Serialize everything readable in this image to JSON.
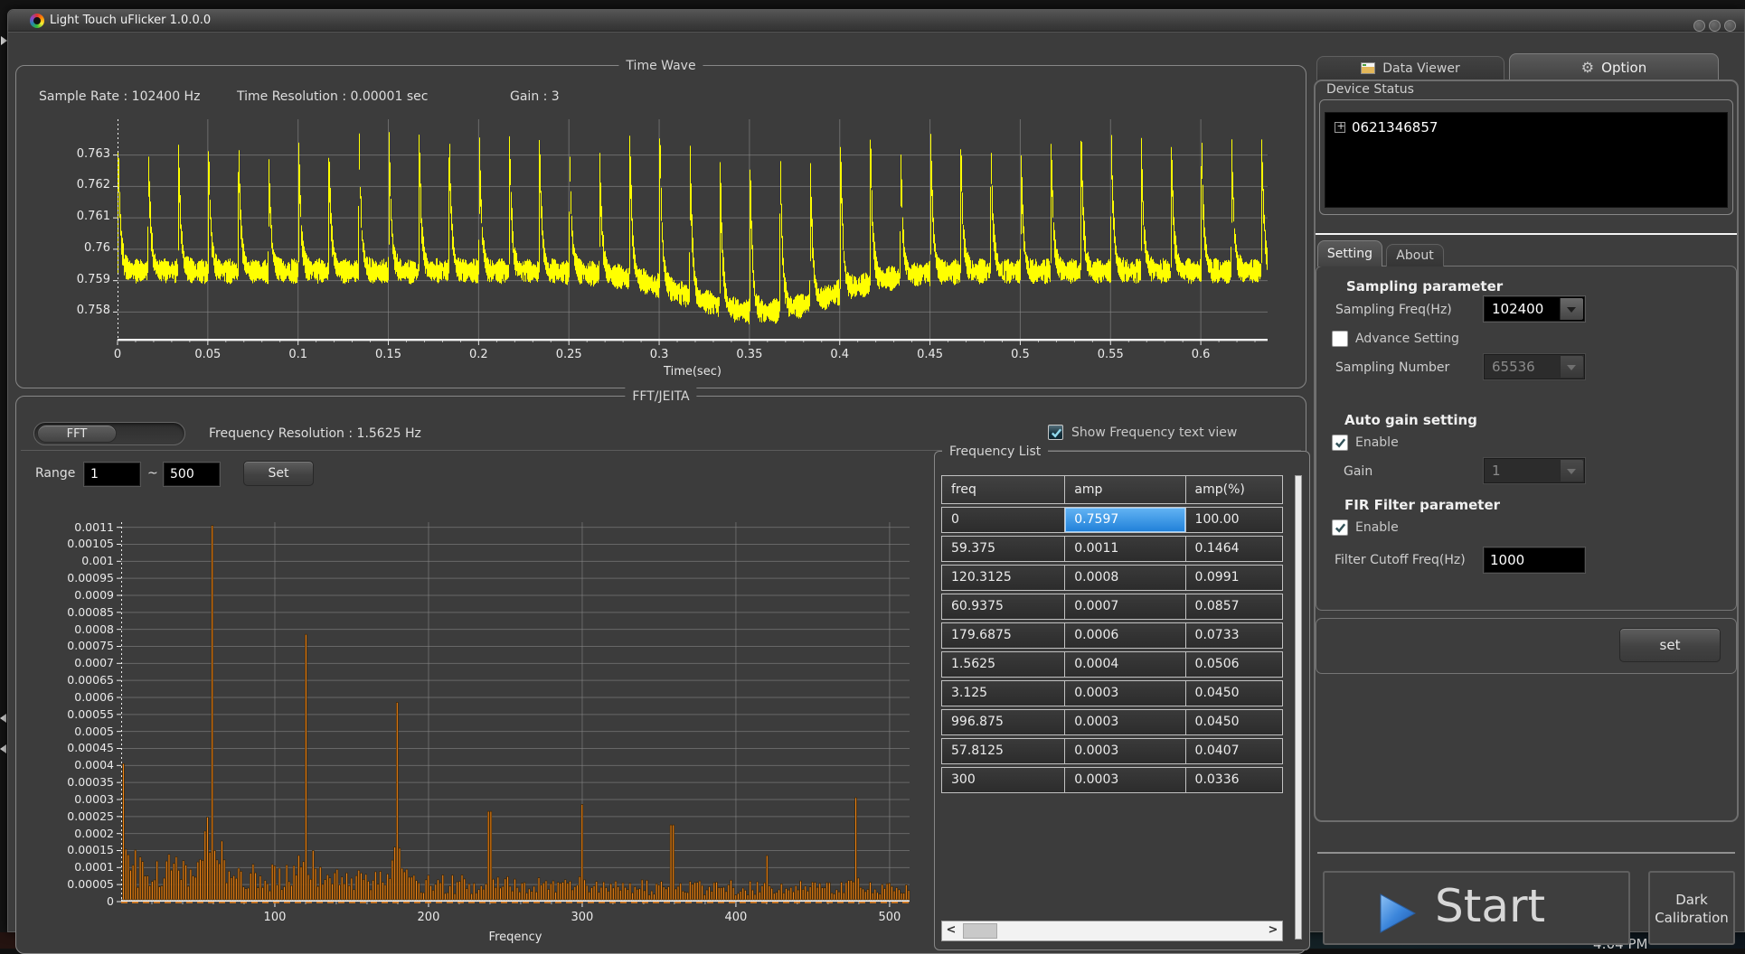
{
  "window": {
    "title": "Light Touch uFlicker 1.0.0.0",
    "controls": [
      "minimize",
      "maximize",
      "close"
    ]
  },
  "taskbar": {
    "clock": "4:04 PM"
  },
  "time_wave": {
    "panel_title": "Time Wave",
    "sample_rate_label": "Sample Rate : 102400 Hz",
    "time_resolution_label": "Time Resolution : 0.00001 sec",
    "gain_label": "Gain : 3",
    "xlabel": "Time(sec)"
  },
  "fft": {
    "panel_title": "FFT/JEITA",
    "toggle_label": "FFT",
    "freq_resolution_label": "Frequency Resolution : 1.5625 Hz",
    "show_freq_label": "Show Frequency text view",
    "show_freq_checked": true,
    "range_label": "Range",
    "range_from": "1",
    "range_tilde": "~",
    "range_to": "500",
    "set_button_label": "Set"
  },
  "frequency_list": {
    "panel_title": "Frequency List",
    "columns": [
      "freq",
      "amp",
      "amp(%)"
    ],
    "rows": [
      [
        "0",
        "0.7597",
        "100.00"
      ],
      [
        "59.375",
        "0.0011",
        "0.1464"
      ],
      [
        "120.3125",
        "0.0008",
        "0.0991"
      ],
      [
        "60.9375",
        "0.0007",
        "0.0857"
      ],
      [
        "179.6875",
        "0.0006",
        "0.0733"
      ],
      [
        "1.5625",
        "0.0004",
        "0.0506"
      ],
      [
        "3.125",
        "0.0003",
        "0.0450"
      ],
      [
        "996.875",
        "0.0003",
        "0.0450"
      ],
      [
        "57.8125",
        "0.0003",
        "0.0407"
      ],
      [
        "300",
        "0.0003",
        "0.0336"
      ]
    ],
    "selected_cell": {
      "row": 0,
      "col": 1
    }
  },
  "right_panel": {
    "tab_data_viewer": "Data Viewer",
    "tab_option": "Option",
    "device_status": {
      "title": "Device Status",
      "tree_items": [
        "0621346857"
      ]
    },
    "tab_setting": "Setting",
    "tab_about": "About",
    "sampling": {
      "heading": "Sampling parameter",
      "freq_label": "Sampling Freq(Hz)",
      "freq_value": "102400",
      "advance_label": "Advance Setting",
      "advance_checked": false,
      "number_label": "Sampling Number",
      "number_value": "65536",
      "number_enabled": false
    },
    "auto_gain": {
      "heading": "Auto gain setting",
      "enable_label": "Enable",
      "enable_checked": true,
      "gain_label": "Gain",
      "gain_value": "1",
      "gain_enabled": false
    },
    "fir": {
      "heading": "FIR Filter parameter",
      "enable_label": "Enable",
      "enable_checked": true,
      "cutoff_label": "Filter Cutoff Freq(Hz)",
      "cutoff_value": "1000"
    },
    "set_button_label": "set",
    "start_button_label": "Start",
    "dark_calibration_label": "Dark\nCalibration"
  },
  "colors": {
    "waveform": "#ffff00",
    "fft_bar": "#f08418",
    "selected_cell": "#2f8de4",
    "axis": "#f2f2f2",
    "grid": "#8b8b8b"
  },
  "chart_data": [
    {
      "id": "time_wave",
      "type": "line",
      "title": "Time Wave",
      "xlabel": "Time(sec)",
      "x_ticks": [
        "0",
        "0.05",
        "0.1",
        "0.15",
        "0.2",
        "0.25",
        "0.3",
        "0.35",
        "0.4",
        "0.45",
        "0.5",
        "0.55",
        "0.6"
      ],
      "y_ticks": [
        "0.763",
        "0.762",
        "0.761",
        "0.76",
        "0.759",
        "0.758"
      ],
      "xlim": [
        0,
        0.637
      ],
      "ylim": [
        0.75712,
        0.76414
      ],
      "grid": true,
      "signal": {
        "pulse_freq_hz": 60,
        "baseline": 0.7593,
        "baseline_noise": 0.00042,
        "peak": 0.7634,
        "peak_jitter": 0.0004,
        "dip_center_sec": 0.355,
        "dip_depth": 0.0013,
        "dip_width_sec": 0.055
      }
    },
    {
      "id": "fft",
      "type": "bar",
      "xlabel": "Freqency",
      "x_ticks": [
        "100",
        "200",
        "300",
        "400",
        "500"
      ],
      "y_ticks": [
        "0.0011",
        "0.00105",
        "0.001",
        "0.00095",
        "0.0009",
        "0.00085",
        "0.0008",
        "0.00075",
        "0.0007",
        "0.00065",
        "0.0006",
        "0.00055",
        "0.0005",
        "0.00045",
        "0.0004",
        "0.00035",
        "0.0003",
        "0.00025",
        "0.0002",
        "0.00015",
        "0.0001",
        "0.00005",
        "0"
      ],
      "xlim": [
        0,
        513
      ],
      "ylim": [
        0,
        0.001115
      ],
      "bin_hz": 1.5625,
      "grid": true,
      "peaks": [
        [
          1.5625,
          0.0004
        ],
        [
          59.375,
          0.0011
        ],
        [
          120.3125,
          0.00078
        ],
        [
          179.6875,
          0.00058
        ],
        [
          240,
          0.00026
        ],
        [
          300,
          0.00028
        ],
        [
          359,
          0.00022
        ],
        [
          420,
          0.00013
        ],
        [
          478,
          0.0003
        ]
      ],
      "noise_floor": 2.8e-05
    }
  ]
}
